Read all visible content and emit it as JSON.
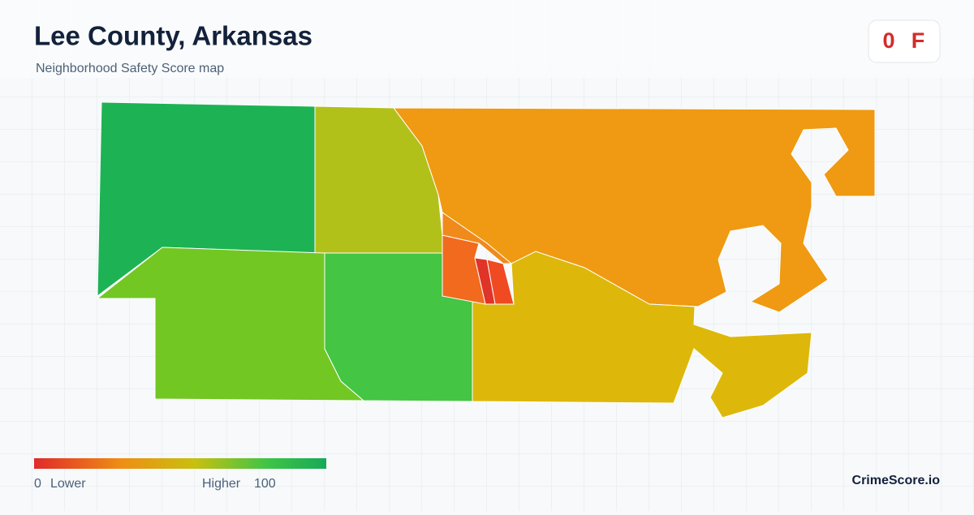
{
  "header": {
    "title": "Lee County, Arkansas",
    "subtitle": "Neighborhood Safety Score map"
  },
  "badge": {
    "score": "0",
    "grade": "F"
  },
  "legend": {
    "min": "0",
    "min_label": "Lower",
    "max_label": "Higher",
    "max": "100"
  },
  "brand": "CrimeScore.io"
}
